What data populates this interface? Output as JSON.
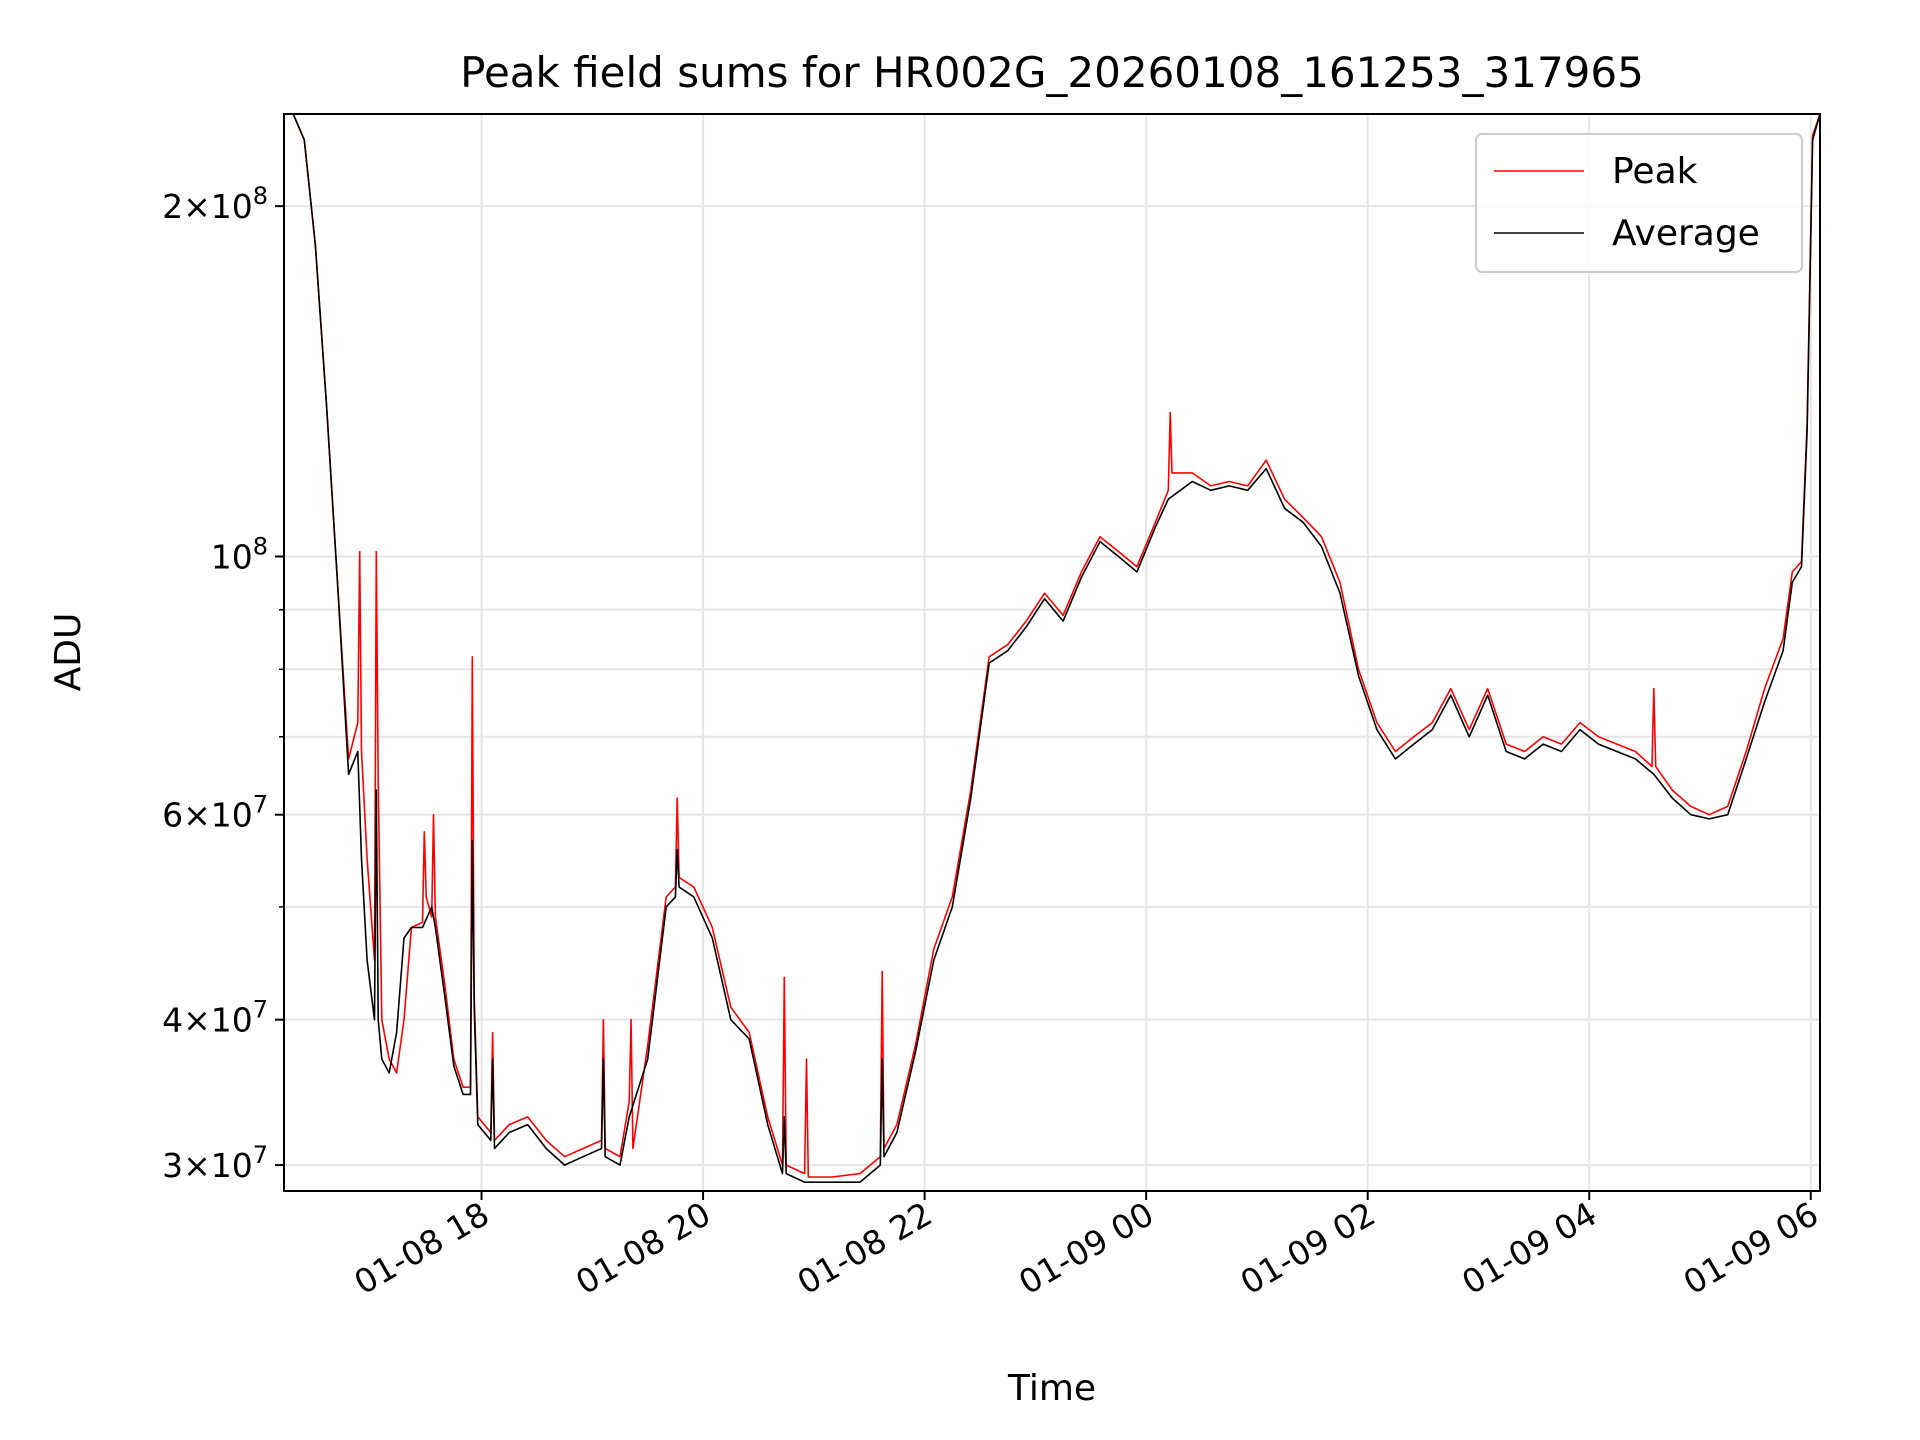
{
  "chart_data": {
    "type": "line",
    "title": "Peak field sums for HR002G_20260108_161253_317965",
    "xlabel": "Time",
    "ylabel": "ADU",
    "y_scale": "log",
    "ylim": [
      28500000,
      240000000
    ],
    "xlim": [
      "2026-01-08 16:13",
      "2026-01-09 06:05"
    ],
    "grid": true,
    "legend_position": "top-right",
    "x_ticks": [
      {
        "t": "2026-01-08 18:00",
        "label": "01-08 18"
      },
      {
        "t": "2026-01-08 20:00",
        "label": "01-08 20"
      },
      {
        "t": "2026-01-08 22:00",
        "label": "01-08 22"
      },
      {
        "t": "2026-01-09 00:00",
        "label": "01-09 00"
      },
      {
        "t": "2026-01-09 02:00",
        "label": "01-09 02"
      },
      {
        "t": "2026-01-09 04:00",
        "label": "01-09 04"
      },
      {
        "t": "2026-01-09 06:00",
        "label": "01-09 06"
      }
    ],
    "y_major_ticks": [
      {
        "value": 30000000,
        "mant": "3",
        "exp": "7"
      },
      {
        "value": 40000000,
        "mant": "4",
        "exp": "7"
      },
      {
        "value": 60000000,
        "mant": "6",
        "exp": "7"
      },
      {
        "value": 100000000,
        "mant": "",
        "exp": "8"
      },
      {
        "value": 200000000,
        "mant": "2",
        "exp": "8"
      }
    ],
    "y_minor_grid": [
      50000000,
      70000000,
      80000000,
      90000000
    ],
    "series": [
      {
        "name": "Peak",
        "color": "#ff0000",
        "x": [
          "2026-01-08 16:13",
          "2026-01-08 16:18",
          "2026-01-08 16:24",
          "2026-01-08 16:30",
          "2026-01-08 16:36",
          "2026-01-08 16:42",
          "2026-01-08 16:48",
          "2026-01-08 16:53",
          "2026-01-08 16:54",
          "2026-01-08 16:55",
          "2026-01-08 16:58",
          "2026-01-08 17:02",
          "2026-01-08 17:03",
          "2026-01-08 17:04",
          "2026-01-08 17:06",
          "2026-01-08 17:10",
          "2026-01-08 17:14",
          "2026-01-08 17:18",
          "2026-01-08 17:22",
          "2026-01-08 17:28",
          "2026-01-08 17:29",
          "2026-01-08 17:30",
          "2026-01-08 17:33",
          "2026-01-08 17:34",
          "2026-01-08 17:35",
          "2026-01-08 17:40",
          "2026-01-08 17:45",
          "2026-01-08 17:50",
          "2026-01-08 17:54",
          "2026-01-08 17:55",
          "2026-01-08 17:56",
          "2026-01-08 17:58",
          "2026-01-08 18:05",
          "2026-01-08 18:06",
          "2026-01-08 18:07",
          "2026-01-08 18:15",
          "2026-01-08 18:25",
          "2026-01-08 18:35",
          "2026-01-08 18:45",
          "2026-01-08 18:55",
          "2026-01-08 19:05",
          "2026-01-08 19:06",
          "2026-01-08 19:07",
          "2026-01-08 19:15",
          "2026-01-08 19:20",
          "2026-01-08 19:21",
          "2026-01-08 19:22",
          "2026-01-08 19:30",
          "2026-01-08 19:40",
          "2026-01-08 19:45",
          "2026-01-08 19:46",
          "2026-01-08 19:47",
          "2026-01-08 19:55",
          "2026-01-08 20:05",
          "2026-01-08 20:15",
          "2026-01-08 20:25",
          "2026-01-08 20:35",
          "2026-01-08 20:43",
          "2026-01-08 20:44",
          "2026-01-08 20:45",
          "2026-01-08 20:55",
          "2026-01-08 20:56",
          "2026-01-08 20:57",
          "2026-01-08 21:10",
          "2026-01-08 21:25",
          "2026-01-08 21:36",
          "2026-01-08 21:37",
          "2026-01-08 21:38",
          "2026-01-08 21:45",
          "2026-01-08 21:55",
          "2026-01-08 22:05",
          "2026-01-08 22:15",
          "2026-01-08 22:25",
          "2026-01-08 22:35",
          "2026-01-08 22:45",
          "2026-01-08 22:55",
          "2026-01-08 23:05",
          "2026-01-08 23:15",
          "2026-01-08 23:25",
          "2026-01-08 23:35",
          "2026-01-08 23:45",
          "2026-01-08 23:55",
          "2026-01-09 00:05",
          "2026-01-09 00:12",
          "2026-01-09 00:13",
          "2026-01-09 00:14",
          "2026-01-09 00:25",
          "2026-01-09 00:35",
          "2026-01-09 00:45",
          "2026-01-09 00:55",
          "2026-01-09 01:05",
          "2026-01-09 01:15",
          "2026-01-09 01:25",
          "2026-01-09 01:35",
          "2026-01-09 01:45",
          "2026-01-09 01:55",
          "2026-01-09 02:05",
          "2026-01-09 02:15",
          "2026-01-09 02:25",
          "2026-01-09 02:35",
          "2026-01-09 02:45",
          "2026-01-09 02:55",
          "2026-01-09 03:05",
          "2026-01-09 03:15",
          "2026-01-09 03:25",
          "2026-01-09 03:35",
          "2026-01-09 03:45",
          "2026-01-09 03:55",
          "2026-01-09 04:05",
          "2026-01-09 04:15",
          "2026-01-09 04:25",
          "2026-01-09 04:34",
          "2026-01-09 04:35",
          "2026-01-09 04:36",
          "2026-01-09 04:45",
          "2026-01-09 04:55",
          "2026-01-09 05:05",
          "2026-01-09 05:15",
          "2026-01-09 05:25",
          "2026-01-09 05:35",
          "2026-01-09 05:45",
          "2026-01-09 05:50",
          "2026-01-09 05:55",
          "2026-01-09 05:58",
          "2026-01-09 06:01",
          "2026-01-09 06:05"
        ],
        "y": [
          240000000,
          240000000,
          228000000,
          185000000,
          135000000,
          95000000,
          67000000,
          72000000,
          101000000,
          68000000,
          55000000,
          45000000,
          101000000,
          64000000,
          40000000,
          37000000,
          36000000,
          40000000,
          48000000,
          48500000,
          58000000,
          51000000,
          49000000,
          60000000,
          49000000,
          43000000,
          37000000,
          35000000,
          35000000,
          82000000,
          42000000,
          33000000,
          32000000,
          39000000,
          31500000,
          32500000,
          33000000,
          31500000,
          30500000,
          31000000,
          31500000,
          40000000,
          31000000,
          30500000,
          34000000,
          40000000,
          31000000,
          38000000,
          51000000,
          52000000,
          62000000,
          53000000,
          52000000,
          48000000,
          41000000,
          39000000,
          33000000,
          30000000,
          43500000,
          30000000,
          29500000,
          37000000,
          29300000,
          29300000,
          29500000,
          30500000,
          44000000,
          31000000,
          32500000,
          38000000,
          46000000,
          51000000,
          63000000,
          82000000,
          84000000,
          88000000,
          93000000,
          89000000,
          97000000,
          104000000,
          101000000,
          98000000,
          107000000,
          114000000,
          133000000,
          118000000,
          118000000,
          115000000,
          116000000,
          115000000,
          121000000,
          112000000,
          108000000,
          104000000,
          95000000,
          80000000,
          72000000,
          68000000,
          70000000,
          72000000,
          77000000,
          71000000,
          77000000,
          69000000,
          68000000,
          70000000,
          69000000,
          72000000,
          70000000,
          69000000,
          68000000,
          66000000,
          77000000,
          66000000,
          63000000,
          61000000,
          60000000,
          61000000,
          68000000,
          77000000,
          85000000,
          97000000,
          99000000,
          130000000,
          230000000,
          240000000
        ]
      },
      {
        "name": "Average",
        "color": "#000000",
        "x": [
          "2026-01-08 16:13",
          "2026-01-08 16:18",
          "2026-01-08 16:24",
          "2026-01-08 16:30",
          "2026-01-08 16:36",
          "2026-01-08 16:42",
          "2026-01-08 16:48",
          "2026-01-08 16:53",
          "2026-01-08 16:55",
          "2026-01-08 16:58",
          "2026-01-08 17:02",
          "2026-01-08 17:03",
          "2026-01-08 17:04",
          "2026-01-08 17:06",
          "2026-01-08 17:10",
          "2026-01-08 17:14",
          "2026-01-08 17:18",
          "2026-01-08 17:22",
          "2026-01-08 17:28",
          "2026-01-08 17:33",
          "2026-01-08 17:35",
          "2026-01-08 17:40",
          "2026-01-08 17:45",
          "2026-01-08 17:50",
          "2026-01-08 17:54",
          "2026-01-08 17:55",
          "2026-01-08 17:56",
          "2026-01-08 17:58",
          "2026-01-08 18:05",
          "2026-01-08 18:06",
          "2026-01-08 18:07",
          "2026-01-08 18:15",
          "2026-01-08 18:25",
          "2026-01-08 18:35",
          "2026-01-08 18:45",
          "2026-01-08 18:55",
          "2026-01-08 19:05",
          "2026-01-08 19:06",
          "2026-01-08 19:07",
          "2026-01-08 19:15",
          "2026-01-08 19:20",
          "2026-01-08 19:30",
          "2026-01-08 19:40",
          "2026-01-08 19:45",
          "2026-01-08 19:46",
          "2026-01-08 19:47",
          "2026-01-08 19:55",
          "2026-01-08 20:05",
          "2026-01-08 20:15",
          "2026-01-08 20:25",
          "2026-01-08 20:35",
          "2026-01-08 20:43",
          "2026-01-08 20:44",
          "2026-01-08 20:45",
          "2026-01-08 20:55",
          "2026-01-08 21:10",
          "2026-01-08 21:25",
          "2026-01-08 21:36",
          "2026-01-08 21:37",
          "2026-01-08 21:38",
          "2026-01-08 21:45",
          "2026-01-08 21:55",
          "2026-01-08 22:05",
          "2026-01-08 22:15",
          "2026-01-08 22:25",
          "2026-01-08 22:35",
          "2026-01-08 22:45",
          "2026-01-08 22:55",
          "2026-01-08 23:05",
          "2026-01-08 23:15",
          "2026-01-08 23:25",
          "2026-01-08 23:35",
          "2026-01-08 23:45",
          "2026-01-08 23:55",
          "2026-01-09 00:05",
          "2026-01-09 00:12",
          "2026-01-09 00:25",
          "2026-01-09 00:35",
          "2026-01-09 00:45",
          "2026-01-09 00:55",
          "2026-01-09 01:05",
          "2026-01-09 01:15",
          "2026-01-09 01:25",
          "2026-01-09 01:35",
          "2026-01-09 01:45",
          "2026-01-09 01:55",
          "2026-01-09 02:05",
          "2026-01-09 02:15",
          "2026-01-09 02:25",
          "2026-01-09 02:35",
          "2026-01-09 02:45",
          "2026-01-09 02:55",
          "2026-01-09 03:05",
          "2026-01-09 03:15",
          "2026-01-09 03:25",
          "2026-01-09 03:35",
          "2026-01-09 03:45",
          "2026-01-09 03:55",
          "2026-01-09 04:05",
          "2026-01-09 04:15",
          "2026-01-09 04:25",
          "2026-01-09 04:35",
          "2026-01-09 04:45",
          "2026-01-09 04:55",
          "2026-01-09 05:05",
          "2026-01-09 05:15",
          "2026-01-09 05:25",
          "2026-01-09 05:35",
          "2026-01-09 05:45",
          "2026-01-09 05:50",
          "2026-01-09 05:55",
          "2026-01-09 05:58",
          "2026-01-09 06:01",
          "2026-01-09 06:05"
        ],
        "y": [
          240000000,
          240000000,
          228000000,
          185000000,
          135000000,
          95000000,
          65000000,
          68000000,
          55000000,
          45000000,
          40000000,
          63000000,
          40000000,
          37000000,
          36000000,
          39000000,
          47000000,
          48000000,
          48000000,
          50000000,
          48000000,
          42000000,
          36500000,
          34500000,
          34500000,
          57000000,
          41000000,
          32500000,
          31500000,
          37000000,
          31000000,
          32000000,
          32500000,
          31000000,
          30000000,
          30500000,
          31000000,
          37000000,
          30500000,
          30000000,
          33000000,
          37000000,
          50000000,
          51000000,
          56000000,
          52000000,
          51000000,
          47000000,
          40000000,
          38500000,
          32500000,
          29500000,
          33000000,
          29500000,
          29000000,
          29000000,
          29000000,
          30000000,
          37000000,
          30500000,
          32000000,
          37500000,
          45000000,
          50000000,
          62000000,
          81000000,
          83000000,
          87000000,
          92000000,
          88000000,
          96000000,
          103000000,
          100000000,
          97000000,
          106000000,
          112000000,
          116000000,
          114000000,
          115000000,
          114000000,
          119000000,
          110000000,
          107000000,
          102000000,
          93000000,
          79000000,
          71000000,
          67000000,
          69000000,
          71000000,
          76000000,
          70000000,
          76000000,
          68000000,
          67000000,
          69000000,
          68000000,
          71000000,
          69000000,
          68000000,
          67000000,
          65000000,
          62000000,
          60000000,
          59500000,
          60000000,
          67000000,
          75000000,
          83000000,
          95000000,
          98000000,
          128000000,
          228000000,
          240000000
        ]
      }
    ]
  }
}
